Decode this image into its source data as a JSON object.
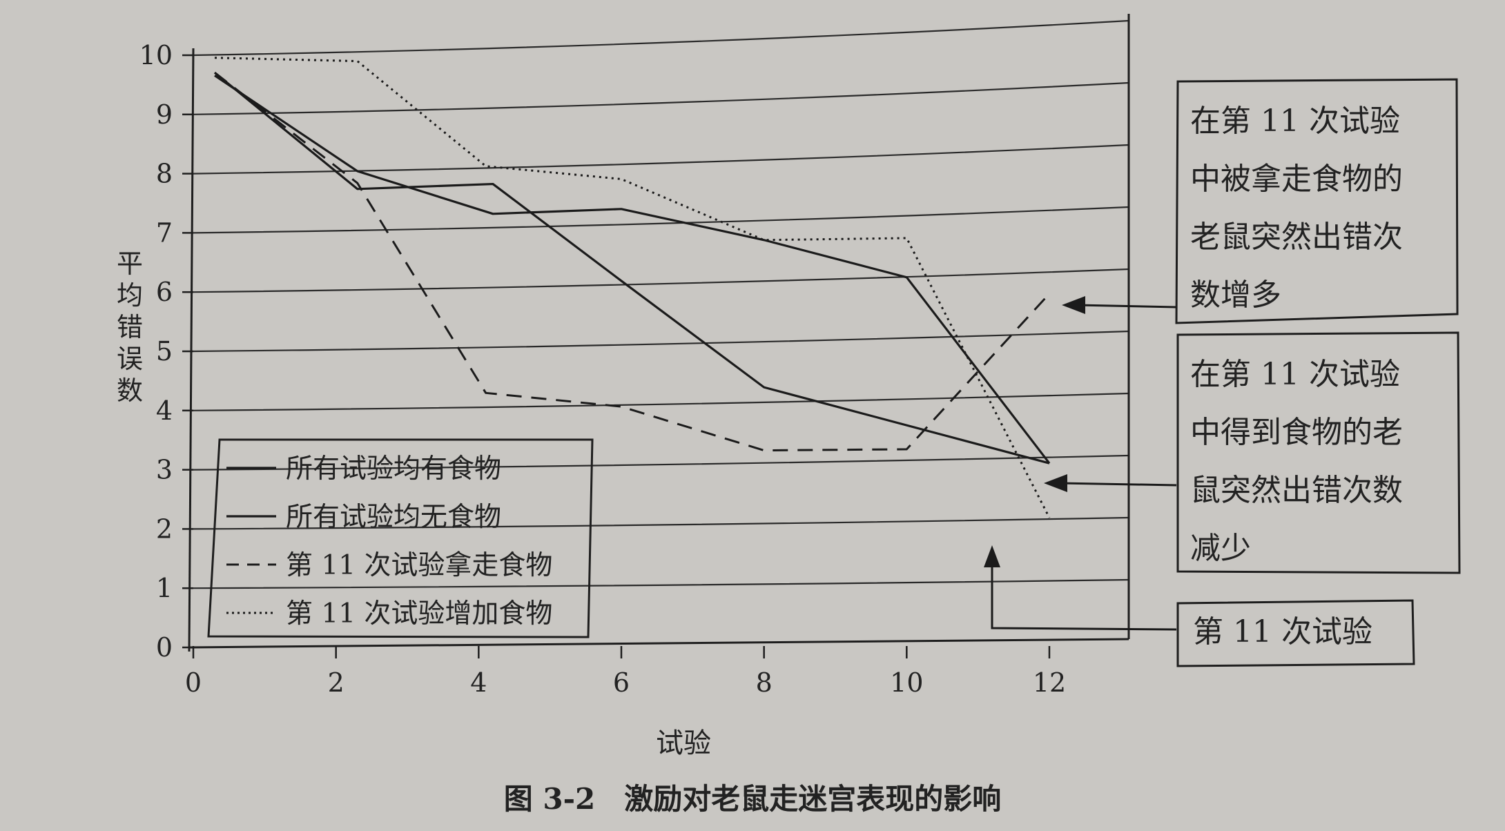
{
  "chart_data": {
    "type": "line",
    "caption": "图 3-2　激励对老鼠走迷宫表现的影响",
    "xlabel": "试验",
    "ylabel": "平均错误数",
    "xlim": [
      0,
      12
    ],
    "ylim": [
      0,
      10
    ],
    "x_ticks": [
      "0",
      "2",
      "4",
      "6",
      "8",
      "10",
      "12"
    ],
    "y_ticks": [
      "0",
      "1",
      "2",
      "3",
      "4",
      "5",
      "6",
      "7",
      "8",
      "9",
      "10"
    ],
    "grid": "horizontal",
    "legend_position": "bottom-left",
    "series": [
      {
        "name": "所有试验均有食物",
        "style": "solid",
        "x": [
          0.3,
          2.3,
          4.2,
          6,
          8,
          12
        ],
        "y": [
          9.7,
          7.7,
          7.75,
          6.1,
          4.3,
          3.0
        ]
      },
      {
        "name": "所有试验均无食物",
        "style": "solid",
        "x": [
          0.3,
          2.3,
          4.2,
          6,
          8,
          10,
          12
        ],
        "y": [
          9.65,
          8.0,
          7.25,
          7.3,
          6.75,
          6.1,
          3.0
        ]
      },
      {
        "name": "第 11 次试验拿走食物",
        "style": "dashed",
        "x": [
          0.3,
          2.3,
          4.1,
          6,
          8,
          10,
          12
        ],
        "y": [
          9.7,
          7.8,
          4.25,
          4.0,
          3.25,
          3.25,
          5.8
        ]
      },
      {
        "name": "第 11 次试验增加食物",
        "style": "dotted",
        "x": [
          0.3,
          2.3,
          4.1,
          6,
          8,
          10,
          12
        ],
        "y": [
          9.95,
          9.85,
          8.05,
          7.8,
          6.75,
          6.75,
          2.1
        ]
      }
    ],
    "annotations": [
      {
        "lines": [
          "在第 11 次试验",
          "中被拿走食物的",
          "老鼠突然出错次",
          "数增多"
        ],
        "points_to": "第 11 次试验拿走食物"
      },
      {
        "lines": [
          "在第 11 次试验",
          "中得到食物的老",
          "鼠突然出错次数",
          "减少"
        ],
        "points_to": "所有试验均有食物"
      },
      {
        "lines": [
          "第 11 次试验"
        ],
        "points_to": "trial 11"
      }
    ]
  }
}
